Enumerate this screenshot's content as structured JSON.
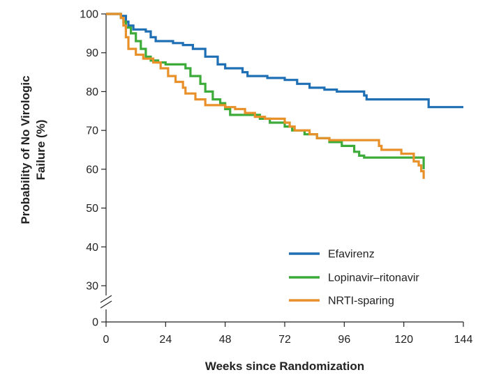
{
  "chart_data": {
    "type": "line",
    "xlabel": "Weeks since Randomization",
    "ylabel_lines": [
      "Probability of No Virologic",
      "Failure (%)"
    ],
    "x_ticks": [
      0,
      24,
      48,
      72,
      96,
      120,
      144
    ],
    "y_ticks": [
      0,
      30,
      40,
      50,
      60,
      70,
      80,
      90,
      100
    ],
    "xlim": [
      0,
      144
    ],
    "ylim": [
      30,
      100
    ],
    "y_axis_break": true,
    "grid": false,
    "legend_position": "bottom-right",
    "series": [
      {
        "name": "Efavirenz",
        "color": "#1f6fb5",
        "points": [
          [
            0,
            100
          ],
          [
            6,
            99.5
          ],
          [
            8,
            98
          ],
          [
            9,
            97
          ],
          [
            11,
            96
          ],
          [
            16,
            95.5
          ],
          [
            18,
            94
          ],
          [
            20,
            93
          ],
          [
            27,
            92.5
          ],
          [
            31,
            92
          ],
          [
            35,
            91
          ],
          [
            40,
            89
          ],
          [
            45,
            87
          ],
          [
            48,
            86
          ],
          [
            55,
            85
          ],
          [
            57,
            84
          ],
          [
            65,
            83.5
          ],
          [
            72,
            83
          ],
          [
            77,
            82
          ],
          [
            82,
            81
          ],
          [
            88,
            80.5
          ],
          [
            93,
            80
          ],
          [
            104,
            79
          ],
          [
            105,
            78
          ],
          [
            130,
            76
          ],
          [
            144,
            76
          ]
        ]
      },
      {
        "name": "Lopinavir–ritonavir",
        "color": "#3cab3a",
        "points": [
          [
            0,
            100
          ],
          [
            6,
            99
          ],
          [
            7,
            98
          ],
          [
            8,
            96.5
          ],
          [
            10,
            95
          ],
          [
            12,
            93
          ],
          [
            14,
            91
          ],
          [
            16,
            89
          ],
          [
            18,
            88
          ],
          [
            21,
            87.5
          ],
          [
            24,
            87
          ],
          [
            32,
            86
          ],
          [
            34,
            84
          ],
          [
            38,
            82
          ],
          [
            40,
            80
          ],
          [
            43,
            78
          ],
          [
            46,
            77
          ],
          [
            48,
            75.5
          ],
          [
            50,
            74
          ],
          [
            62,
            73
          ],
          [
            66,
            72
          ],
          [
            72,
            71
          ],
          [
            75,
            70
          ],
          [
            80,
            69
          ],
          [
            85,
            68
          ],
          [
            90,
            67
          ],
          [
            95,
            66
          ],
          [
            100,
            64.5
          ],
          [
            102,
            63.5
          ],
          [
            104,
            63
          ],
          [
            128,
            63
          ],
          [
            128,
            60
          ]
        ]
      },
      {
        "name": "NRTI-sparing",
        "color": "#e8902a",
        "points": [
          [
            0,
            100
          ],
          [
            6,
            99
          ],
          [
            7,
            97
          ],
          [
            8,
            94
          ],
          [
            9,
            91
          ],
          [
            12,
            89.5
          ],
          [
            15,
            88.5
          ],
          [
            19,
            87.5
          ],
          [
            22,
            86
          ],
          [
            25,
            84
          ],
          [
            28,
            82.5
          ],
          [
            31,
            81
          ],
          [
            32,
            79.5
          ],
          [
            36,
            78
          ],
          [
            40,
            76.5
          ],
          [
            48,
            76
          ],
          [
            52,
            75.5
          ],
          [
            56,
            74.5
          ],
          [
            60,
            73.5
          ],
          [
            64,
            73
          ],
          [
            72,
            72
          ],
          [
            74,
            71
          ],
          [
            76,
            70
          ],
          [
            82,
            69
          ],
          [
            85,
            68
          ],
          [
            90,
            67.5
          ],
          [
            110,
            66
          ],
          [
            111,
            65
          ],
          [
            119,
            64
          ],
          [
            124,
            62
          ],
          [
            126,
            61
          ],
          [
            127,
            59.5
          ],
          [
            128,
            57.5
          ]
        ]
      }
    ]
  }
}
